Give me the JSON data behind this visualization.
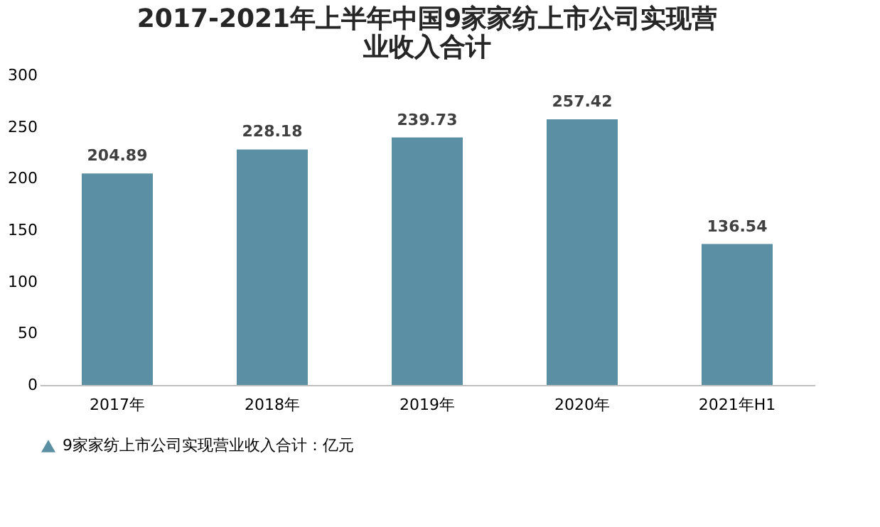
{
  "chart_data": {
    "type": "bar",
    "title": "2017-2021年上半年中国9家家纺上市公司实现营业收入合计",
    "categories": [
      "2017年",
      "2018年",
      "2019年",
      "2020年",
      "2021年H1"
    ],
    "series": [
      {
        "name": "9家家纺上市公司实现营业收入合计：亿元",
        "color": "#5b8fa3",
        "values": [
          204.89,
          228.18,
          239.73,
          257.42,
          136.54
        ]
      }
    ],
    "ylim": [
      0,
      300
    ],
    "yticks": [
      0,
      50,
      100,
      150,
      200,
      250,
      300
    ],
    "grid": false,
    "legend": "bottom",
    "data_labels": true,
    "marker": "triangle"
  }
}
